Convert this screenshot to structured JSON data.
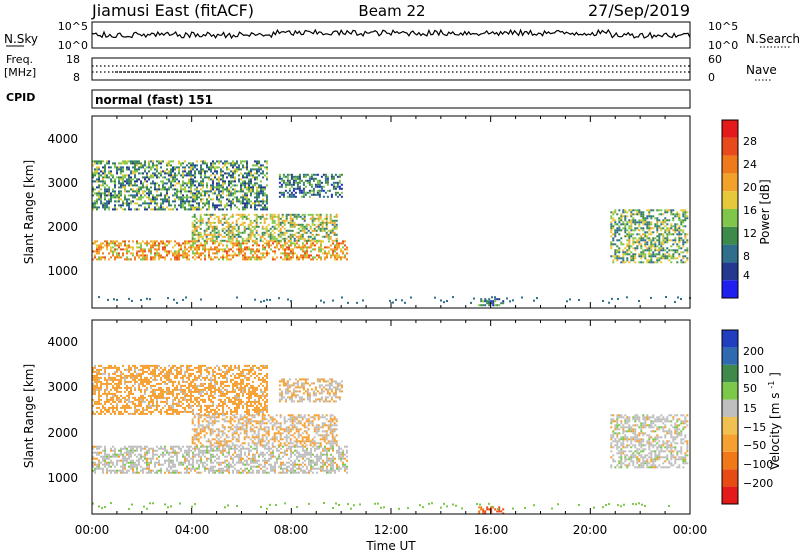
{
  "header": {
    "station": "Jiamusi East (fitACF)",
    "beam": "Beam 22",
    "date": "27/Sep/2019"
  },
  "noise_panel": {
    "left_label": "N.Sky",
    "right_label": "N.Search",
    "left_ticks": [
      "10^5",
      "10^0"
    ],
    "right_ticks": [
      "10^5",
      "10^0"
    ]
  },
  "freq_panel": {
    "left_label": "Freq.",
    "left_unit": "[MHz]",
    "right_label": "Nave",
    "left_ticks": [
      "18",
      "8"
    ],
    "right_ticks": [
      "60",
      "0"
    ]
  },
  "cpid": {
    "label": "CPID",
    "value": "normal (fast) 151"
  },
  "axes": {
    "xlabel": "Time UT",
    "ylabel": "Slant Range [km]",
    "x_ticks": [
      "00:00",
      "04:00",
      "08:00",
      "12:00",
      "16:00",
      "20:00",
      "00:00"
    ],
    "y_ticks": [
      "1000",
      "2000",
      "3000",
      "4000"
    ]
  },
  "power_colorbar": {
    "label": "Power [dB]",
    "ticks": [
      "4",
      "8",
      "12",
      "16",
      "20",
      "24",
      "28"
    ],
    "colors": [
      "#1f1ff0",
      "#23398f",
      "#2f6f8c",
      "#3e8a4a",
      "#7fc64a",
      "#e6c93a",
      "#f2a22a",
      "#ee7a1c",
      "#e84a1b",
      "#e41a1a"
    ]
  },
  "velocity_colorbar": {
    "label_main": "Velocity [m s",
    "label_sup": "-1",
    "label_end": "]",
    "ticks": [
      "200",
      "100",
      "50",
      "15",
      "−15",
      "−50",
      "−100",
      "−200"
    ],
    "colors": [
      "#1f3fbf",
      "#2f6ab0",
      "#3f8a4a",
      "#7cc84a",
      "#bfbfbf",
      "#f0c050",
      "#f5a030",
      "#f07818",
      "#e84a14",
      "#e41a1a"
    ]
  },
  "chart_data": [
    {
      "type": "heatmap",
      "title": "",
      "xlabel": "Time UT",
      "ylabel": "Slant Range [km]",
      "xlim": [
        0,
        24
      ],
      "ylim": [
        180,
        4500
      ],
      "value_label": "Power [dB]",
      "regions": [
        {
          "t_start": 0.0,
          "t_end": 10.2,
          "range_low": 1250,
          "range_high": 1700,
          "value": 20
        },
        {
          "t_start": 4.0,
          "t_end": 9.8,
          "range_low": 1700,
          "range_high": 2300,
          "value": 14
        },
        {
          "t_start": 0.0,
          "t_end": 7.0,
          "range_low": 2400,
          "range_high": 3500,
          "value": 10
        },
        {
          "t_start": 7.5,
          "t_end": 10.0,
          "range_low": 2700,
          "range_high": 3200,
          "value": 8
        },
        {
          "t_start": 15.5,
          "t_end": 16.5,
          "range_low": 250,
          "range_high": 400,
          "value": 6
        },
        {
          "t_start": 20.8,
          "t_end": 23.9,
          "range_low": 1200,
          "range_high": 2400,
          "value": 12
        }
      ]
    },
    {
      "type": "heatmap",
      "title": "",
      "xlabel": "Time UT",
      "ylabel": "Slant Range [km]",
      "xlim": [
        0,
        24
      ],
      "ylim": [
        180,
        4500
      ],
      "value_label": "Velocity [m s-1]",
      "regions": [
        {
          "t_start": 0.0,
          "t_end": 10.2,
          "range_low": 1100,
          "range_high": 1700,
          "value": 0
        },
        {
          "t_start": 4.0,
          "t_end": 9.8,
          "range_low": 1700,
          "range_high": 2400,
          "value": -15
        },
        {
          "t_start": 0.0,
          "t_end": 7.0,
          "range_low": 2400,
          "range_high": 3500,
          "value": -30
        },
        {
          "t_start": 7.5,
          "t_end": 10.0,
          "range_low": 2700,
          "range_high": 3200,
          "value": -15
        },
        {
          "t_start": 15.5,
          "t_end": 16.5,
          "range_low": 200,
          "range_high": 350,
          "value": -100
        },
        {
          "t_start": 20.8,
          "t_end": 23.9,
          "range_low": 1200,
          "range_high": 2400,
          "value": 0
        }
      ]
    }
  ]
}
